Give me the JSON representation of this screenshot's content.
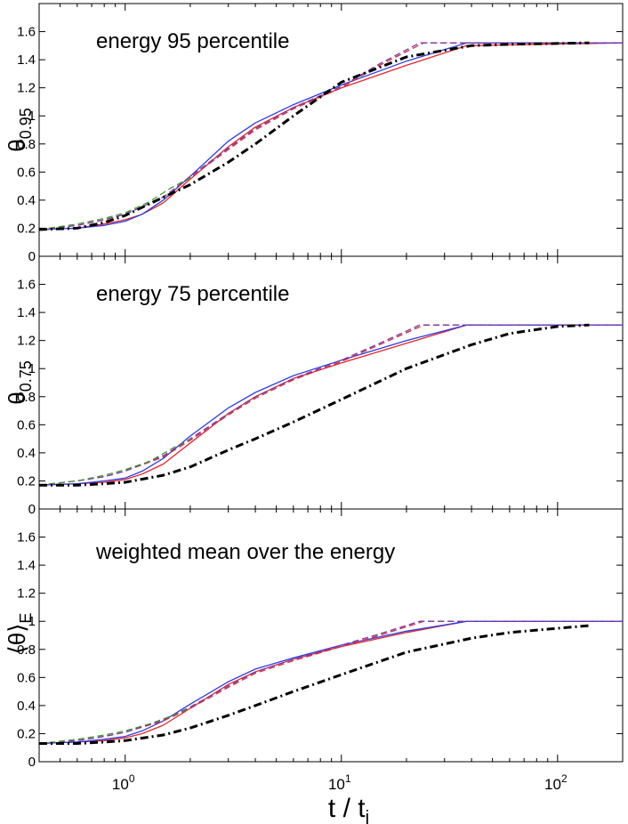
{
  "chart_data": [
    {
      "type": "line",
      "title": "energy 95 percentile",
      "ylabel_main": "θ",
      "ylabel_sub": "0.95",
      "xscale": "log",
      "xlim": [
        0.4,
        200
      ],
      "ylim": [
        0,
        1.8
      ],
      "yticks": [
        "0",
        "0.2",
        "0.4",
        "0.6",
        "0.8",
        "1",
        "1.2",
        "1.4",
        "1.6"
      ],
      "series": [
        {
          "name": "red solid",
          "color": "#e8262b",
          "style": "solid",
          "width": 1.3,
          "x": [
            0.4,
            0.6,
            0.8,
            1.0,
            1.2,
            1.5,
            2.0,
            3.0,
            4.0,
            6.0,
            10,
            20,
            38,
            200
          ],
          "y": [
            0.19,
            0.2,
            0.23,
            0.26,
            0.3,
            0.38,
            0.55,
            0.78,
            0.92,
            1.06,
            1.2,
            1.36,
            1.5,
            1.52
          ]
        },
        {
          "name": "blue solid",
          "color": "#2a3ee6",
          "style": "solid",
          "width": 1.3,
          "x": [
            0.4,
            0.6,
            0.8,
            1.0,
            1.2,
            1.5,
            2.0,
            3.0,
            4.0,
            6.0,
            10,
            20,
            38,
            200
          ],
          "y": [
            0.19,
            0.2,
            0.22,
            0.25,
            0.3,
            0.4,
            0.57,
            0.82,
            0.95,
            1.08,
            1.22,
            1.39,
            1.52,
            1.52
          ]
        },
        {
          "name": "red dashed",
          "color": "#d62a44",
          "style": "dashed",
          "width": 1.3,
          "x": [
            0.4,
            0.6,
            0.8,
            1.0,
            1.5,
            2.0,
            3.0,
            4.0,
            6.0,
            10,
            15,
            24,
            40,
            200
          ],
          "y": [
            0.19,
            0.22,
            0.26,
            0.3,
            0.42,
            0.56,
            0.76,
            0.9,
            1.05,
            1.2,
            1.36,
            1.52,
            1.52,
            1.52
          ]
        },
        {
          "name": "purple dashed",
          "color": "#7a3aa8",
          "style": "dashed",
          "width": 1.3,
          "x": [
            0.4,
            0.6,
            0.8,
            1.0,
            1.5,
            2.0,
            3.0,
            4.0,
            6.0,
            10,
            15,
            23,
            40,
            200
          ],
          "y": [
            0.19,
            0.22,
            0.26,
            0.3,
            0.42,
            0.57,
            0.77,
            0.91,
            1.06,
            1.21,
            1.37,
            1.52,
            1.52,
            1.52
          ]
        },
        {
          "name": "green dashed",
          "color": "#3a9a2a",
          "style": "dashed",
          "width": 1.2,
          "x": [
            0.4,
            0.6,
            0.8,
            1.0,
            1.3,
            1.6,
            2.0
          ],
          "y": [
            0.19,
            0.23,
            0.27,
            0.31,
            0.39,
            0.48,
            0.56
          ]
        },
        {
          "name": "black dash-dot",
          "color": "#000000",
          "style": "dashdot",
          "width": 3,
          "x": [
            0.4,
            0.6,
            0.8,
            1.0,
            1.5,
            2.0,
            3.0,
            4.0,
            6.0,
            10,
            20,
            40,
            60,
            140
          ],
          "y": [
            0.19,
            0.2,
            0.24,
            0.29,
            0.42,
            0.51,
            0.67,
            0.8,
            1.0,
            1.24,
            1.42,
            1.5,
            1.51,
            1.52
          ]
        }
      ]
    },
    {
      "type": "line",
      "title": "energy 75 percentile",
      "ylabel_main": "θ",
      "ylabel_sub": "0.75",
      "xscale": "log",
      "xlim": [
        0.4,
        200
      ],
      "ylim": [
        0,
        1.8
      ],
      "yticks": [
        "0",
        "0.2",
        "0.4",
        "0.6",
        "0.8",
        "1",
        "1.2",
        "1.4",
        "1.6"
      ],
      "series": [
        {
          "name": "red solid",
          "color": "#e8262b",
          "style": "solid",
          "width": 1.3,
          "x": [
            0.4,
            0.6,
            0.8,
            1.0,
            1.2,
            1.5,
            2.0,
            3.0,
            4.0,
            6.0,
            10,
            20,
            38,
            200
          ],
          "y": [
            0.17,
            0.18,
            0.19,
            0.21,
            0.25,
            0.32,
            0.47,
            0.68,
            0.8,
            0.93,
            1.04,
            1.18,
            1.31,
            1.31
          ]
        },
        {
          "name": "blue solid",
          "color": "#2a3ee6",
          "style": "solid",
          "width": 1.3,
          "x": [
            0.4,
            0.6,
            0.8,
            1.0,
            1.2,
            1.5,
            2.0,
            3.0,
            4.0,
            6.0,
            10,
            20,
            38,
            200
          ],
          "y": [
            0.17,
            0.18,
            0.2,
            0.22,
            0.27,
            0.36,
            0.52,
            0.72,
            0.83,
            0.95,
            1.06,
            1.2,
            1.31,
            1.31
          ]
        },
        {
          "name": "red dashed",
          "color": "#d62a44",
          "style": "dashed",
          "width": 1.3,
          "x": [
            0.4,
            0.6,
            0.8,
            1.0,
            1.5,
            2.0,
            3.0,
            4.0,
            6.0,
            10,
            15,
            24,
            40,
            200
          ],
          "y": [
            0.17,
            0.2,
            0.23,
            0.27,
            0.37,
            0.49,
            0.67,
            0.79,
            0.92,
            1.05,
            1.17,
            1.31,
            1.31,
            1.31
          ]
        },
        {
          "name": "purple dashed",
          "color": "#7a3aa8",
          "style": "dashed",
          "width": 1.3,
          "x": [
            0.4,
            0.6,
            0.8,
            1.0,
            1.5,
            2.0,
            3.0,
            4.0,
            6.0,
            10,
            15,
            23,
            40,
            200
          ],
          "y": [
            0.17,
            0.2,
            0.23,
            0.27,
            0.38,
            0.5,
            0.68,
            0.8,
            0.93,
            1.06,
            1.18,
            1.31,
            1.31,
            1.31
          ]
        },
        {
          "name": "green dashed",
          "color": "#3a9a2a",
          "style": "dashed",
          "width": 1.2,
          "x": [
            0.4,
            0.6,
            0.8,
            1.0,
            1.3,
            1.6,
            2.0
          ],
          "y": [
            0.17,
            0.2,
            0.24,
            0.28,
            0.34,
            0.42,
            0.5
          ]
        },
        {
          "name": "black dash-dot",
          "color": "#000000",
          "style": "dashdot",
          "width": 3,
          "x": [
            0.4,
            0.6,
            0.8,
            1.0,
            1.5,
            2.0,
            3.0,
            4.0,
            6.0,
            10,
            20,
            40,
            60,
            100,
            140
          ],
          "y": [
            0.17,
            0.17,
            0.18,
            0.19,
            0.24,
            0.3,
            0.42,
            0.5,
            0.62,
            0.78,
            1.0,
            1.17,
            1.25,
            1.3,
            1.31
          ]
        }
      ]
    },
    {
      "type": "line",
      "title": "weighted mean over the energy",
      "ylabel_main": "⟨θ⟩",
      "ylabel_sub": "E",
      "xscale": "log",
      "xlim": [
        0.4,
        200
      ],
      "ylim": [
        0,
        1.8
      ],
      "xlabel_main": "t / t",
      "xlabel_sub": "j",
      "xticks": [
        {
          "value": 1,
          "base": "10",
          "exp": "0"
        },
        {
          "value": 10,
          "base": "10",
          "exp": "1"
        },
        {
          "value": 100,
          "base": "10",
          "exp": "2"
        }
      ],
      "yticks": [
        "0",
        "0.2",
        "0.4",
        "0.6",
        "0.8",
        "1",
        "1.2",
        "1.4",
        "1.6"
      ],
      "series": [
        {
          "name": "red solid",
          "color": "#e8262b",
          "style": "solid",
          "width": 1.3,
          "x": [
            0.4,
            0.6,
            0.8,
            1.0,
            1.2,
            1.5,
            2.0,
            3.0,
            4.0,
            6.0,
            10,
            20,
            38,
            200
          ],
          "y": [
            0.13,
            0.14,
            0.15,
            0.17,
            0.2,
            0.26,
            0.38,
            0.55,
            0.64,
            0.73,
            0.82,
            0.92,
            1.0,
            1.0
          ]
        },
        {
          "name": "blue solid",
          "color": "#2a3ee6",
          "style": "solid",
          "width": 1.3,
          "x": [
            0.4,
            0.6,
            0.8,
            1.0,
            1.2,
            1.5,
            2.0,
            3.0,
            4.0,
            6.0,
            10,
            20,
            38,
            200
          ],
          "y": [
            0.13,
            0.14,
            0.16,
            0.18,
            0.22,
            0.29,
            0.41,
            0.57,
            0.66,
            0.74,
            0.83,
            0.93,
            1.0,
            1.0
          ]
        },
        {
          "name": "red dashed",
          "color": "#d62a44",
          "style": "dashed",
          "width": 1.3,
          "x": [
            0.4,
            0.6,
            0.8,
            1.0,
            1.5,
            2.0,
            3.0,
            4.0,
            6.0,
            10,
            15,
            24,
            40,
            200
          ],
          "y": [
            0.13,
            0.15,
            0.18,
            0.21,
            0.29,
            0.38,
            0.53,
            0.63,
            0.72,
            0.82,
            0.9,
            1.0,
            1.0,
            1.0
          ]
        },
        {
          "name": "purple dashed",
          "color": "#7a3aa8",
          "style": "dashed",
          "width": 1.3,
          "x": [
            0.4,
            0.6,
            0.8,
            1.0,
            1.5,
            2.0,
            3.0,
            4.0,
            6.0,
            10,
            15,
            23,
            40,
            200
          ],
          "y": [
            0.13,
            0.15,
            0.18,
            0.21,
            0.3,
            0.39,
            0.54,
            0.64,
            0.73,
            0.83,
            0.91,
            1.0,
            1.0,
            1.0
          ]
        },
        {
          "name": "green dashed",
          "color": "#3a9a2a",
          "style": "dashed",
          "width": 1.2,
          "x": [
            0.4,
            0.6,
            0.8,
            1.0,
            1.3,
            1.6,
            2.0
          ],
          "y": [
            0.13,
            0.16,
            0.19,
            0.22,
            0.27,
            0.32,
            0.38
          ]
        },
        {
          "name": "black dash-dot",
          "color": "#000000",
          "style": "dashdot",
          "width": 3,
          "x": [
            0.4,
            0.6,
            0.8,
            1.0,
            1.5,
            2.0,
            3.0,
            4.0,
            6.0,
            10,
            20,
            40,
            60,
            100,
            140
          ],
          "y": [
            0.13,
            0.13,
            0.14,
            0.15,
            0.19,
            0.24,
            0.33,
            0.4,
            0.5,
            0.62,
            0.78,
            0.88,
            0.92,
            0.95,
            0.97
          ]
        }
      ]
    }
  ]
}
